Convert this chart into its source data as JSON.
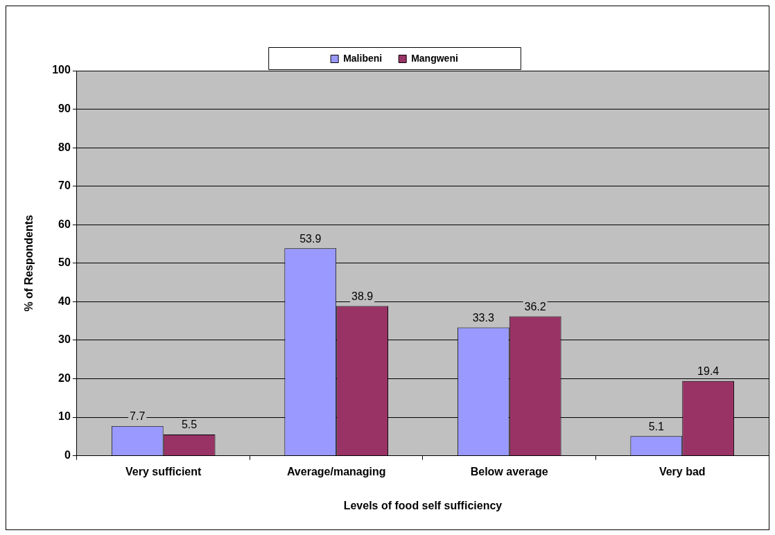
{
  "chart_data": {
    "type": "bar",
    "xlabel": "Levels of food self sufficiency",
    "ylabel": "% of Respondents",
    "categories": [
      "Very sufficient",
      "Average/managing",
      "Below average",
      "Very bad"
    ],
    "series": [
      {
        "name": "Malibeni",
        "color": "#9999ff",
        "values": [
          7.7,
          53.9,
          33.3,
          5.1
        ]
      },
      {
        "name": "Mangweni",
        "color": "#993366",
        "values": [
          5.5,
          38.9,
          36.2,
          19.4
        ]
      }
    ],
    "ylim": [
      0,
      100
    ],
    "yticks": [
      0,
      10,
      20,
      30,
      40,
      50,
      60,
      70,
      80,
      90,
      100
    ],
    "grid": "y",
    "legend": "top",
    "data_labels": true
  }
}
